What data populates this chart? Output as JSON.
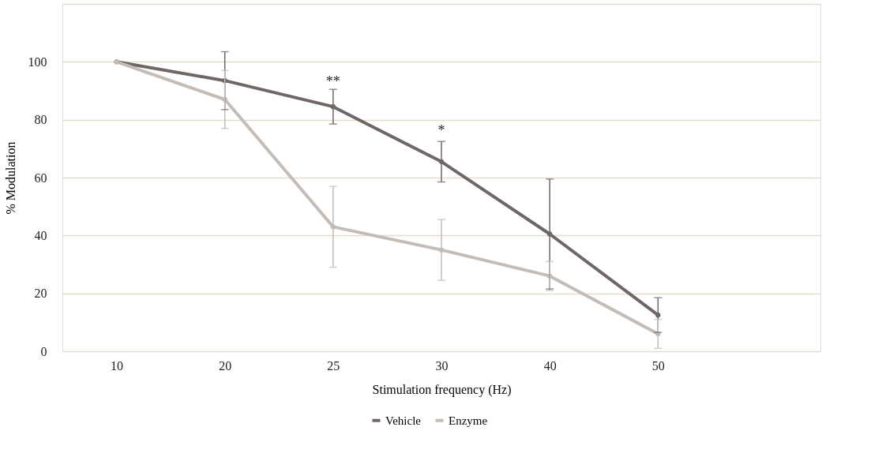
{
  "chart_data": {
    "type": "line",
    "xlabel": "Stimulation frequency (Hz)",
    "ylabel": "% Modulation",
    "categories": [
      "10",
      "20",
      "25",
      "30",
      "40",
      "50",
      null
    ],
    "ylim": [
      0,
      120
    ],
    "yticks": [
      0,
      20,
      40,
      60,
      80,
      100,
      {
        "value": 120,
        "label": null
      }
    ],
    "grid": "y",
    "legend": "bottom",
    "marker": "circle",
    "line_style": "solid",
    "series": [
      {
        "name": "Vehicle",
        "color": "#6f6766",
        "values": [
          100,
          93.5,
          84.5,
          65.5,
          40.5,
          12.5,
          null
        ],
        "errors": [
          null,
          10,
          6,
          7,
          19,
          6,
          null
        ]
      },
      {
        "name": "Enzyme",
        "color": "#c3bcb7",
        "values": [
          100,
          87,
          43,
          35,
          26,
          6,
          null
        ],
        "errors": [
          null,
          10,
          14,
          10.5,
          5,
          5,
          null
        ]
      }
    ],
    "annotations": [
      "**",
      "*"
    ]
  }
}
